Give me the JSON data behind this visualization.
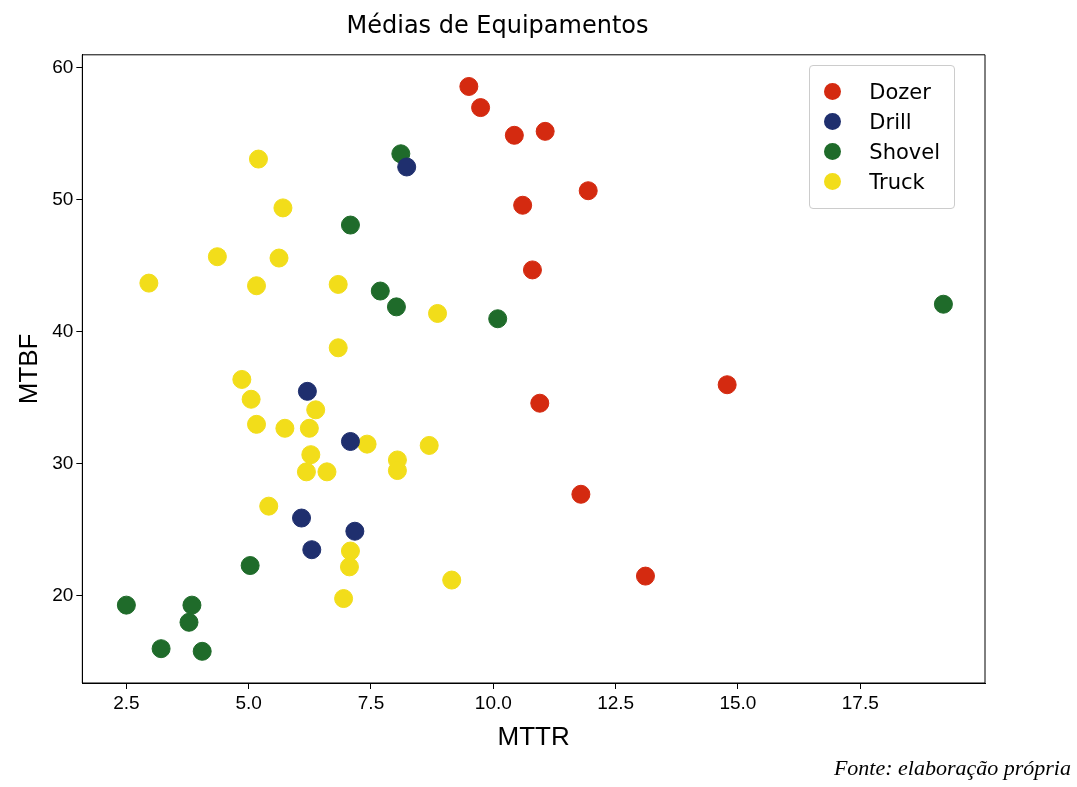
{
  "chart_data": {
    "type": "scatter",
    "title": "Médias de Equipamentos",
    "xlabel": "MTTR",
    "ylabel": "MTBF",
    "annotations": [
      "Fonte: elaboração própria"
    ],
    "xlim": [
      1.6,
      20.05
    ],
    "ylim": [
      13.4,
      61
    ],
    "xticks": [
      2.5,
      {
        "value": 5,
        "label": "5.0"
      },
      7.5,
      {
        "value": 10,
        "label": "10.0"
      },
      12.5,
      {
        "value": 15,
        "label": "15.0"
      },
      17.5
    ],
    "yticks": [
      20,
      30,
      40,
      50,
      60
    ],
    "grid": false,
    "legend": "top right",
    "marker": "circle",
    "series": [
      {
        "name": "Dozer",
        "color": "#d42a10",
        "x": [
          9.5,
          9.74,
          10.43,
          11.06,
          11.94,
          10.6,
          10.8,
          10.95,
          14.78,
          11.79,
          13.11
        ],
        "values": [
          58.6,
          57.0,
          54.9,
          55.2,
          50.7,
          49.6,
          44.7,
          34.6,
          36.0,
          27.7,
          21.5
        ]
      },
      {
        "name": "Drill",
        "color": "#1f2f6e",
        "x": [
          8.23,
          6.2,
          7.08,
          6.08,
          6.29,
          7.17
        ],
        "values": [
          52.5,
          35.5,
          31.7,
          25.9,
          23.5,
          24.9
        ]
      },
      {
        "name": "Shovel",
        "color": "#1f6b2a",
        "x": [
          8.11,
          7.08,
          7.69,
          8.02,
          10.09,
          19.2,
          5.03,
          2.5,
          3.84,
          3.78,
          3.21,
          4.05
        ],
        "values": [
          53.5,
          48.1,
          43.1,
          41.9,
          41.0,
          42.1,
          22.3,
          19.3,
          19.3,
          18.0,
          16.0,
          15.8
        ]
      },
      {
        "name": "Truck",
        "color": "#f2dd1a",
        "x": [
          5.2,
          5.7,
          4.36,
          5.62,
          2.96,
          5.16,
          6.83,
          8.86,
          6.83,
          4.86,
          5.05,
          6.37,
          5.16,
          5.74,
          6.24,
          7.42,
          8.69,
          6.27,
          8.04,
          8.04,
          6.18,
          6.6,
          5.41,
          7.08,
          7.06,
          6.94,
          9.15
        ],
        "values": [
          53.1,
          49.4,
          45.7,
          45.6,
          43.7,
          43.5,
          43.6,
          41.4,
          38.8,
          36.4,
          34.9,
          34.1,
          33.0,
          32.7,
          32.7,
          31.5,
          31.4,
          30.7,
          30.3,
          29.5,
          29.4,
          29.4,
          26.8,
          23.4,
          22.2,
          19.8,
          21.2
        ]
      }
    ]
  }
}
